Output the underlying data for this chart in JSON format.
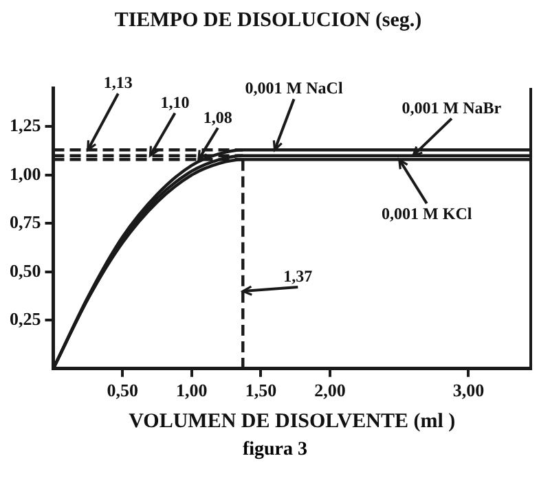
{
  "chart_data": {
    "type": "line",
    "ylabel": "TIEMPO DE DISOLUCION (seg.)",
    "xlabel": "VOLUMEN DE DISOLVENTE (ml )",
    "xlim": [
      0,
      3.45
    ],
    "ylim": [
      0,
      1.45
    ],
    "xticks": [
      {
        "value": 0.5,
        "label": "0,50"
      },
      {
        "value": 1,
        "label": "1,00"
      },
      {
        "value": 1.5,
        "label": "1,50"
      },
      {
        "value": 2,
        "label": "2,00"
      },
      {
        "value": 3,
        "label": "3,00"
      }
    ],
    "yticks": [
      {
        "value": 0.25,
        "label": "0,25"
      },
      {
        "value": 0.5,
        "label": "0,50"
      },
      {
        "value": 0.75,
        "label": "0,75"
      },
      {
        "value": 1,
        "label": "1,00"
      },
      {
        "value": 1.25,
        "label": "1,25"
      }
    ],
    "grid": false,
    "legend": false,
    "marker": "none",
    "series": [
      {
        "color": "#1a1a1a",
        "x": [
          0,
          0.25,
          0.5,
          0.75,
          1,
          1.2,
          1.37,
          3.45
        ],
        "values": [
          0,
          0.37,
          0.68,
          0.9,
          1.05,
          1.11,
          1.13,
          1.13
        ]
      },
      {
        "color": "#1a1a1a",
        "x": [
          0,
          0.25,
          0.5,
          0.75,
          1,
          1.2,
          1.37,
          3.45
        ],
        "values": [
          0,
          0.36,
          0.66,
          0.88,
          1.02,
          1.08,
          1.1,
          1.1
        ]
      },
      {
        "color": "#1a1a1a",
        "x": [
          0,
          0.25,
          0.5,
          0.75,
          1,
          1.2,
          1.37,
          3.45
        ],
        "values": [
          0,
          0.36,
          0.65,
          0.86,
          1.0,
          1.06,
          1.08,
          1.08
        ]
      },
      {
        "color": "#1a1a1a",
        "line_style": "dashed",
        "x": [
          0,
          1.37
        ],
        "values": [
          1.13,
          1.13
        ]
      },
      {
        "color": "#1a1a1a",
        "line_style": "dashed",
        "x": [
          0,
          1.37
        ],
        "values": [
          1.1,
          1.1
        ]
      },
      {
        "color": "#1a1a1a",
        "line_style": "dashed",
        "x": [
          0,
          1.37
        ],
        "values": [
          1.08,
          1.08
        ]
      },
      {
        "color": "#1a1a1a",
        "line_style": "dashed",
        "x": [
          1.37,
          1.37
        ],
        "values": [
          0,
          1.08
        ]
      }
    ],
    "annotations": [
      {
        "text": "1,13",
        "x": 0.25,
        "y": 1.13
      },
      {
        "text": "1,10",
        "x": 0.7,
        "y": 1.1
      },
      {
        "text": "1,08",
        "x": 1.05,
        "y": 1.08
      },
      {
        "text": "0,001 M NaCl",
        "x": 1.6,
        "y": 1.13
      },
      {
        "text": "0,001 M NaBr",
        "x": 2.6,
        "y": 1.1
      },
      {
        "text": "0,001 M KCl",
        "x": 2.5,
        "y": 1.08
      },
      {
        "text": "1,37",
        "x": 1.37,
        "y": 0.4
      },
      "figura 3"
    ]
  }
}
